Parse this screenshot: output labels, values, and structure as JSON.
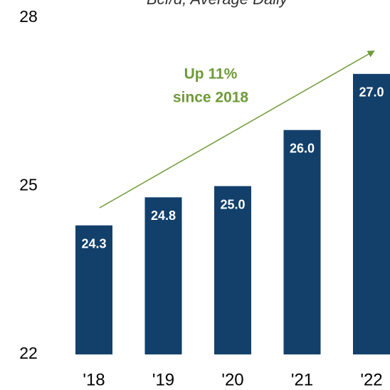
{
  "chart_data": {
    "type": "bar",
    "subtitle": "Bcf/d, Average Daily",
    "annotation": [
      "Up 11%",
      "since 2018"
    ],
    "categories": [
      "'18",
      "'19",
      "'20",
      "'21",
      "'22"
    ],
    "values": [
      24.3,
      24.8,
      25.0,
      26.0,
      27.0
    ],
    "value_labels": [
      "24.3",
      "24.8",
      "25.0",
      "26.0",
      "27.0"
    ],
    "color": "#12406b",
    "annotation_color": "#6f9a3a",
    "ylim": [
      22,
      28
    ],
    "yticks": [
      22,
      25,
      28
    ],
    "grid": false
  }
}
